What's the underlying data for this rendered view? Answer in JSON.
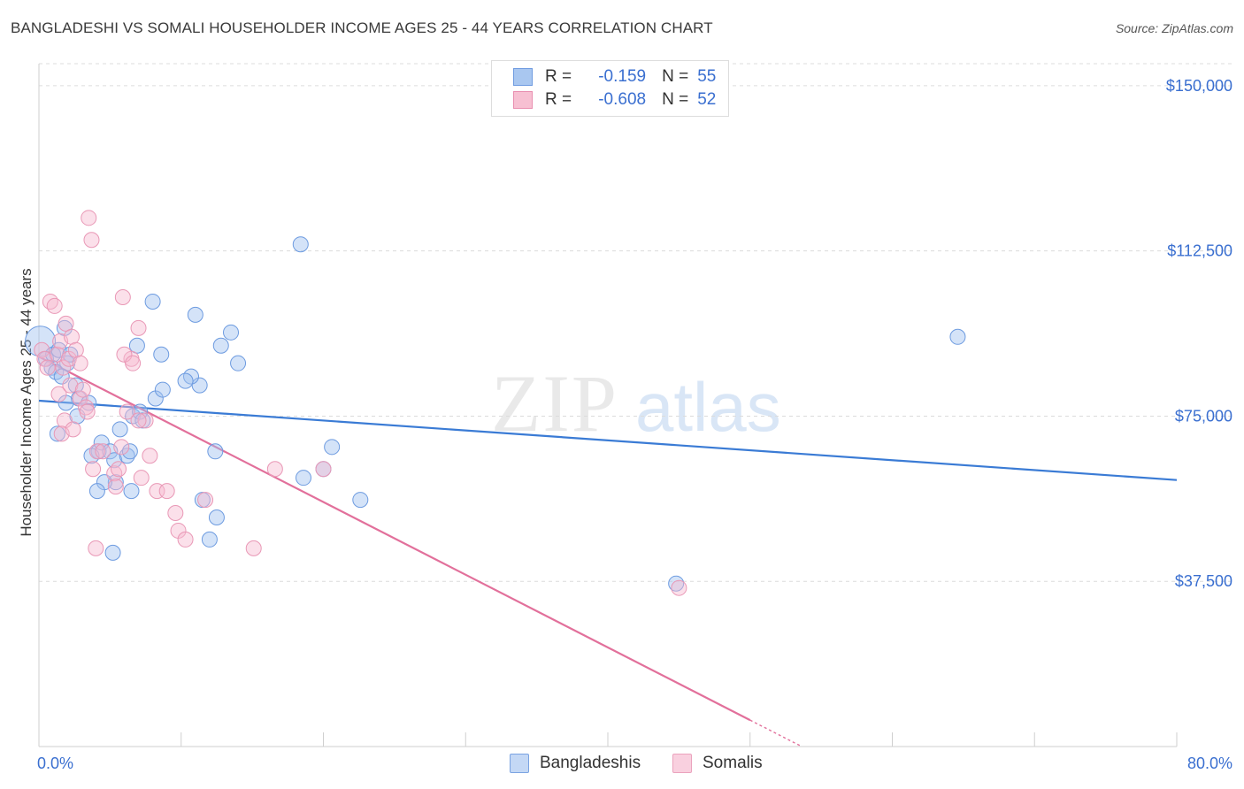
{
  "title": "BANGLADESHI VS SOMALI HOUSEHOLDER INCOME AGES 25 - 44 YEARS CORRELATION CHART",
  "source": "Source: ZipAtlas.com",
  "watermark": {
    "zip": "ZIP",
    "atlas": "atlas"
  },
  "legend": {
    "rows": [
      {
        "r_label": "R =",
        "r_value": "-0.159",
        "n_label": "N =",
        "n_value": "55",
        "color": "#a9c7f0",
        "stroke": "#6f9be0"
      },
      {
        "r_label": "R =",
        "r_value": "-0.608",
        "n_label": "N =",
        "n_value": "52",
        "color": "#f7c0d2",
        "stroke": "#e98fb0"
      }
    ]
  },
  "bottom_legend": [
    {
      "label": "Bangladeshis",
      "color": "#c4d8f5",
      "stroke": "#7aa3e2"
    },
    {
      "label": "Somalis",
      "color": "#f9d0df",
      "stroke": "#eba2bd"
    }
  ],
  "chart_data": {
    "type": "scatter",
    "title": "BANGLADESHI VS SOMALI HOUSEHOLDER INCOME AGES 25 - 44 YEARS CORRELATION CHART",
    "xlabel": "",
    "ylabel": "Householder Income Ages 25 - 44 years",
    "xlim": [
      0,
      80
    ],
    "ylim": [
      0,
      155000
    ],
    "x_tick_labels": [
      "0.0%",
      "80.0%"
    ],
    "y_ticks": [
      37500,
      75000,
      112500,
      150000
    ],
    "y_tick_labels": [
      "$37,500",
      "$75,000",
      "$112,500",
      "$150,000"
    ],
    "grid": "horizontal-dashed",
    "colors": {
      "bangladeshi": "#3a7bd5",
      "somali": "#e2709b",
      "tick_text": "#3a6fd0"
    },
    "series": [
      {
        "name": "Bangladeshis",
        "points": [
          [
            0.1,
            92000
          ],
          [
            0.5,
            88000
          ],
          [
            0.9,
            86000
          ],
          [
            1.0,
            89000
          ],
          [
            1.4,
            90000
          ],
          [
            1.2,
            85000
          ],
          [
            1.8,
            95000
          ],
          [
            2.0,
            87000
          ],
          [
            2.2,
            89000
          ],
          [
            1.6,
            84000
          ],
          [
            2.6,
            82000
          ],
          [
            2.8,
            79000
          ],
          [
            3.5,
            78000
          ],
          [
            2.7,
            75000
          ],
          [
            1.9,
            78000
          ],
          [
            1.3,
            71000
          ],
          [
            4.2,
            67000
          ],
          [
            4.4,
            69000
          ],
          [
            5.0,
            67000
          ],
          [
            5.3,
            65000
          ],
          [
            3.7,
            66000
          ],
          [
            6.2,
            66000
          ],
          [
            6.6,
            75000
          ],
          [
            7.1,
            76000
          ],
          [
            5.7,
            72000
          ],
          [
            5.4,
            60000
          ],
          [
            6.5,
            58000
          ],
          [
            7.3,
            74000
          ],
          [
            8.2,
            79000
          ],
          [
            8.7,
            81000
          ],
          [
            8.6,
            89000
          ],
          [
            6.9,
            91000
          ],
          [
            8.0,
            101000
          ],
          [
            11.0,
            98000
          ],
          [
            12.8,
            91000
          ],
          [
            14.0,
            87000
          ],
          [
            13.5,
            94000
          ],
          [
            11.3,
            82000
          ],
          [
            10.7,
            84000
          ],
          [
            10.3,
            83000
          ],
          [
            6.4,
            67000
          ],
          [
            4.6,
            60000
          ],
          [
            4.1,
            58000
          ],
          [
            12.4,
            67000
          ],
          [
            11.5,
            56000
          ],
          [
            12.5,
            52000
          ],
          [
            18.4,
            114000
          ],
          [
            18.6,
            61000
          ],
          [
            20.0,
            63000
          ],
          [
            20.6,
            68000
          ],
          [
            22.6,
            56000
          ],
          [
            5.2,
            44000
          ],
          [
            12.0,
            47000
          ],
          [
            64.6,
            93000
          ],
          [
            44.8,
            37000
          ]
        ]
      },
      {
        "name": "Somalis",
        "points": [
          [
            0.2,
            90000
          ],
          [
            0.4,
            88000
          ],
          [
            0.6,
            86000
          ],
          [
            0.8,
            101000
          ],
          [
            1.1,
            100000
          ],
          [
            1.3,
            89000
          ],
          [
            1.5,
            92000
          ],
          [
            1.7,
            86000
          ],
          [
            1.9,
            96000
          ],
          [
            2.1,
            88000
          ],
          [
            2.3,
            93000
          ],
          [
            2.6,
            90000
          ],
          [
            2.9,
            87000
          ],
          [
            1.4,
            80000
          ],
          [
            2.2,
            82000
          ],
          [
            2.9,
            79000
          ],
          [
            3.1,
            81000
          ],
          [
            3.3,
            77000
          ],
          [
            3.4,
            76000
          ],
          [
            1.8,
            74000
          ],
          [
            1.6,
            71000
          ],
          [
            2.4,
            72000
          ],
          [
            3.8,
            63000
          ],
          [
            4.1,
            67000
          ],
          [
            4.5,
            67000
          ],
          [
            5.3,
            62000
          ],
          [
            5.6,
            63000
          ],
          [
            5.8,
            68000
          ],
          [
            6.2,
            76000
          ],
          [
            6.5,
            88000
          ],
          [
            6.0,
            89000
          ],
          [
            7.0,
            95000
          ],
          [
            5.9,
            102000
          ],
          [
            3.5,
            120000
          ],
          [
            3.7,
            115000
          ],
          [
            7.5,
            74000
          ],
          [
            7.8,
            66000
          ],
          [
            8.3,
            58000
          ],
          [
            9.0,
            58000
          ],
          [
            9.6,
            53000
          ],
          [
            9.8,
            49000
          ],
          [
            10.3,
            47000
          ],
          [
            7.0,
            74000
          ],
          [
            7.2,
            61000
          ],
          [
            5.4,
            59000
          ],
          [
            11.7,
            56000
          ],
          [
            15.1,
            45000
          ],
          [
            16.6,
            63000
          ],
          [
            20.0,
            63000
          ],
          [
            4.0,
            45000
          ],
          [
            6.6,
            87000
          ],
          [
            45.0,
            36000
          ]
        ]
      }
    ],
    "trend_lines": [
      {
        "series": "Bangladeshis",
        "from": [
          0,
          78500
        ],
        "to": [
          80,
          60500
        ]
      },
      {
        "series": "Somalis",
        "from": [
          0,
          88500
        ],
        "to": [
          50,
          6000
        ]
      }
    ]
  }
}
